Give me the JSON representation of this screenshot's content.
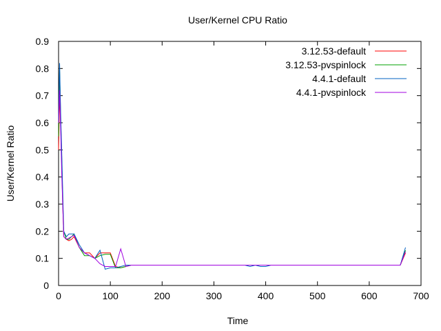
{
  "chart_data": {
    "type": "line",
    "title": "User/Kernel CPU Ratio",
    "xlabel": "Time",
    "ylabel": "User/Kernel Ratio",
    "xlim": [
      0,
      700
    ],
    "ylim": [
      0,
      0.9
    ],
    "x_ticks": [
      "0",
      "100",
      "200",
      "300",
      "400",
      "500",
      "600",
      "700"
    ],
    "y_ticks": [
      "0",
      "0.1",
      "0.2",
      "0.3",
      "0.4",
      "0.5",
      "0.6",
      "0.7",
      "0.8",
      "0.9"
    ],
    "grid": false,
    "legend_position": "top-right",
    "series": [
      {
        "name": "3.12.53-default",
        "color": "#ff0000",
        "x": [
          0,
          2,
          4,
          6,
          8,
          10,
          15,
          20,
          25,
          30,
          40,
          50,
          60,
          70,
          80,
          90,
          100,
          110,
          120,
          130,
          140,
          200,
          300,
          360,
          370,
          380,
          390,
          400,
          410,
          500,
          600,
          660,
          670
        ],
        "y": [
          0.5,
          0.7,
          0.6,
          0.45,
          0.3,
          0.18,
          0.17,
          0.165,
          0.17,
          0.18,
          0.14,
          0.12,
          0.12,
          0.1,
          0.12,
          0.12,
          0.12,
          0.07,
          0.065,
          0.07,
          0.075,
          0.075,
          0.075,
          0.075,
          0.075,
          0.075,
          0.075,
          0.075,
          0.075,
          0.075,
          0.075,
          0.075,
          0.12
        ]
      },
      {
        "name": "3.12.53-pvspinlock",
        "color": "#00a000",
        "x": [
          0,
          2,
          4,
          6,
          8,
          10,
          15,
          20,
          25,
          30,
          40,
          50,
          60,
          70,
          80,
          90,
          100,
          110,
          120,
          130,
          140,
          200,
          300,
          360,
          370,
          380,
          390,
          400,
          410,
          500,
          600,
          660,
          670
        ],
        "y": [
          0.55,
          0.8,
          0.62,
          0.48,
          0.32,
          0.2,
          0.17,
          0.17,
          0.18,
          0.19,
          0.14,
          0.11,
          0.11,
          0.1,
          0.11,
          0.115,
          0.115,
          0.065,
          0.065,
          0.07,
          0.075,
          0.075,
          0.075,
          0.075,
          0.075,
          0.075,
          0.075,
          0.075,
          0.075,
          0.075,
          0.075,
          0.075,
          0.13
        ]
      },
      {
        "name": "4.4.1-default",
        "color": "#0060c0",
        "x": [
          0,
          2,
          4,
          6,
          8,
          10,
          15,
          20,
          25,
          30,
          40,
          50,
          60,
          70,
          80,
          90,
          100,
          110,
          120,
          130,
          140,
          200,
          300,
          360,
          370,
          380,
          390,
          400,
          410,
          500,
          600,
          660,
          670
        ],
        "y": [
          0.6,
          0.82,
          0.64,
          0.5,
          0.35,
          0.2,
          0.18,
          0.19,
          0.19,
          0.19,
          0.15,
          0.12,
          0.11,
          0.1,
          0.13,
          0.06,
          0.065,
          0.065,
          0.07,
          0.075,
          0.075,
          0.075,
          0.075,
          0.075,
          0.07,
          0.075,
          0.07,
          0.07,
          0.075,
          0.075,
          0.075,
          0.075,
          0.14
        ]
      },
      {
        "name": "4.4.1-pvspinlock",
        "color": "#a000e0",
        "x": [
          0,
          2,
          4,
          6,
          8,
          10,
          15,
          20,
          25,
          30,
          40,
          50,
          60,
          70,
          80,
          90,
          100,
          110,
          120,
          130,
          140,
          200,
          300,
          360,
          370,
          380,
          390,
          400,
          410,
          500,
          600,
          660,
          670
        ],
        "y": [
          0.6,
          0.72,
          0.58,
          0.42,
          0.3,
          0.18,
          0.17,
          0.175,
          0.18,
          0.185,
          0.14,
          0.12,
          0.11,
          0.1,
          0.08,
          0.07,
          0.07,
          0.07,
          0.135,
          0.07,
          0.075,
          0.075,
          0.075,
          0.075,
          0.075,
          0.075,
          0.075,
          0.075,
          0.075,
          0.075,
          0.075,
          0.075,
          0.125
        ]
      }
    ]
  }
}
